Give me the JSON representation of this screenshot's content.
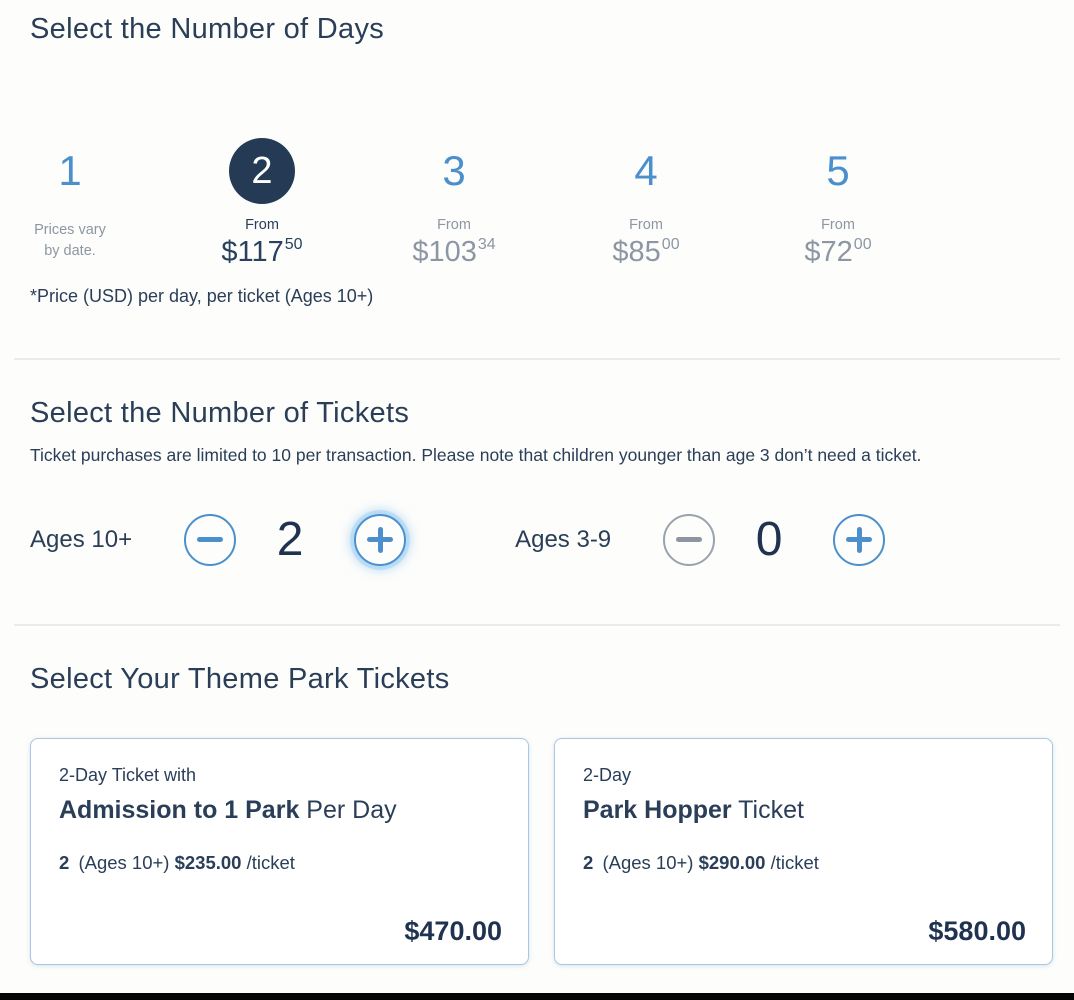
{
  "colors": {
    "navy_text": "#2a3e58",
    "selected_circle": "#243a55",
    "accent_blue": "#4b90cc",
    "muted_gray": "#8d96a4",
    "card_border": "#a9c7e2"
  },
  "days_section": {
    "title": "Select the Number of Days",
    "footnote": "*Price (USD) per day, per ticket (Ages 10+)",
    "options": [
      {
        "day": "1",
        "selected": false,
        "note_line1": "Prices vary",
        "note_line2": "by date."
      },
      {
        "day": "2",
        "selected": true,
        "from_label": "From",
        "price_dollars": "$117",
        "price_cents": "50"
      },
      {
        "day": "3",
        "selected": false,
        "from_label": "From",
        "price_dollars": "$103",
        "price_cents": "34"
      },
      {
        "day": "4",
        "selected": false,
        "from_label": "From",
        "price_dollars": "$85",
        "price_cents": "00"
      },
      {
        "day": "5",
        "selected": false,
        "from_label": "From",
        "price_dollars": "$72",
        "price_cents": "00"
      }
    ]
  },
  "tickets_section": {
    "title": "Select the Number of Tickets",
    "subtitle": "Ticket purchases are limited to 10 per transaction. Please note that children younger than age 3 don’t need a ticket.",
    "steppers": [
      {
        "label": "Ages 10+",
        "value": "2",
        "minus_icon": "minus-icon",
        "plus_icon": "plus-icon",
        "minus_disabled": false,
        "plus_focused": true
      },
      {
        "label": "Ages 3-9",
        "value": "0",
        "minus_icon": "minus-icon",
        "plus_icon": "plus-icon",
        "minus_disabled": true,
        "plus_focused": false
      }
    ]
  },
  "park_tickets_section": {
    "title": "Select Your Theme Park Tickets",
    "cards": [
      {
        "pretitle": "2-Day Ticket with",
        "title_bold": "Admission to 1 Park",
        "title_rest": " Per Day",
        "qty": "2",
        "ages": "(Ages 10+)",
        "price_per": "$235.00",
        "per_suffix": "/ticket",
        "total": "$470.00"
      },
      {
        "pretitle": "2-Day",
        "title_bold": "Park Hopper",
        "title_rest": " Ticket",
        "qty": "2",
        "ages": "(Ages 10+)",
        "price_per": "$290.00",
        "per_suffix": "/ticket",
        "total": "$580.00"
      }
    ]
  }
}
